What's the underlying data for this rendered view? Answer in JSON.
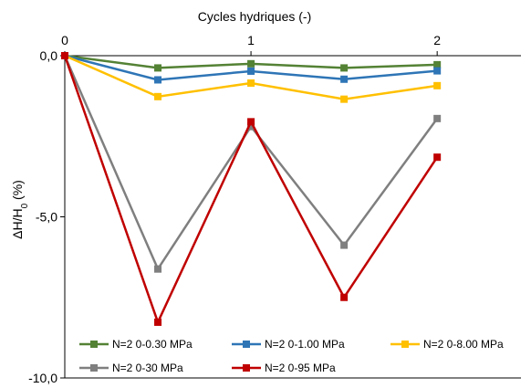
{
  "chart_data": {
    "type": "line",
    "title": "Cycles hydriques (-)",
    "xlabel": "Cycles hydriques (-)",
    "ylabel": "ΔH/H0 (%)",
    "ylabel_main": "ΔH/H",
    "ylabel_sub": "0",
    "ylabel_suffix": " (%)",
    "x": [
      0,
      0.5,
      1,
      1.5,
      2
    ],
    "xlim": [
      0,
      2.45
    ],
    "ylim": [
      -10,
      0
    ],
    "x_ticks": [
      0,
      1,
      2
    ],
    "x_tick_labels": [
      "0",
      "1",
      "2"
    ],
    "y_ticks": [
      0,
      -5,
      -10
    ],
    "y_tick_labels": [
      "0,0",
      "-5,0",
      "-10,0"
    ],
    "x_axis_position": "top",
    "grid": false,
    "legend_position": "bottom-inside",
    "series": [
      {
        "name": "N=2 0-0.30 MPa",
        "color": "#548235",
        "values": [
          0,
          -0.38,
          -0.25,
          -0.38,
          -0.28
        ]
      },
      {
        "name": "N=2 0-1.00 MPa",
        "color": "#2E75B6",
        "values": [
          0,
          -0.75,
          -0.48,
          -0.73,
          -0.47
        ]
      },
      {
        "name": "N=2 0-8.00 MPa",
        "color": "#FFC000",
        "values": [
          0,
          -1.27,
          -0.85,
          -1.35,
          -0.93
        ]
      },
      {
        "name": "N=2 0-30 MPa",
        "color": "#7F7F7F",
        "values": [
          0,
          -6.62,
          -2.2,
          -5.88,
          -1.95
        ]
      },
      {
        "name": "N=2 0-95 MPa",
        "color": "#C00000",
        "values": [
          0,
          -8.27,
          -2.05,
          -7.5,
          -3.15
        ]
      }
    ]
  }
}
